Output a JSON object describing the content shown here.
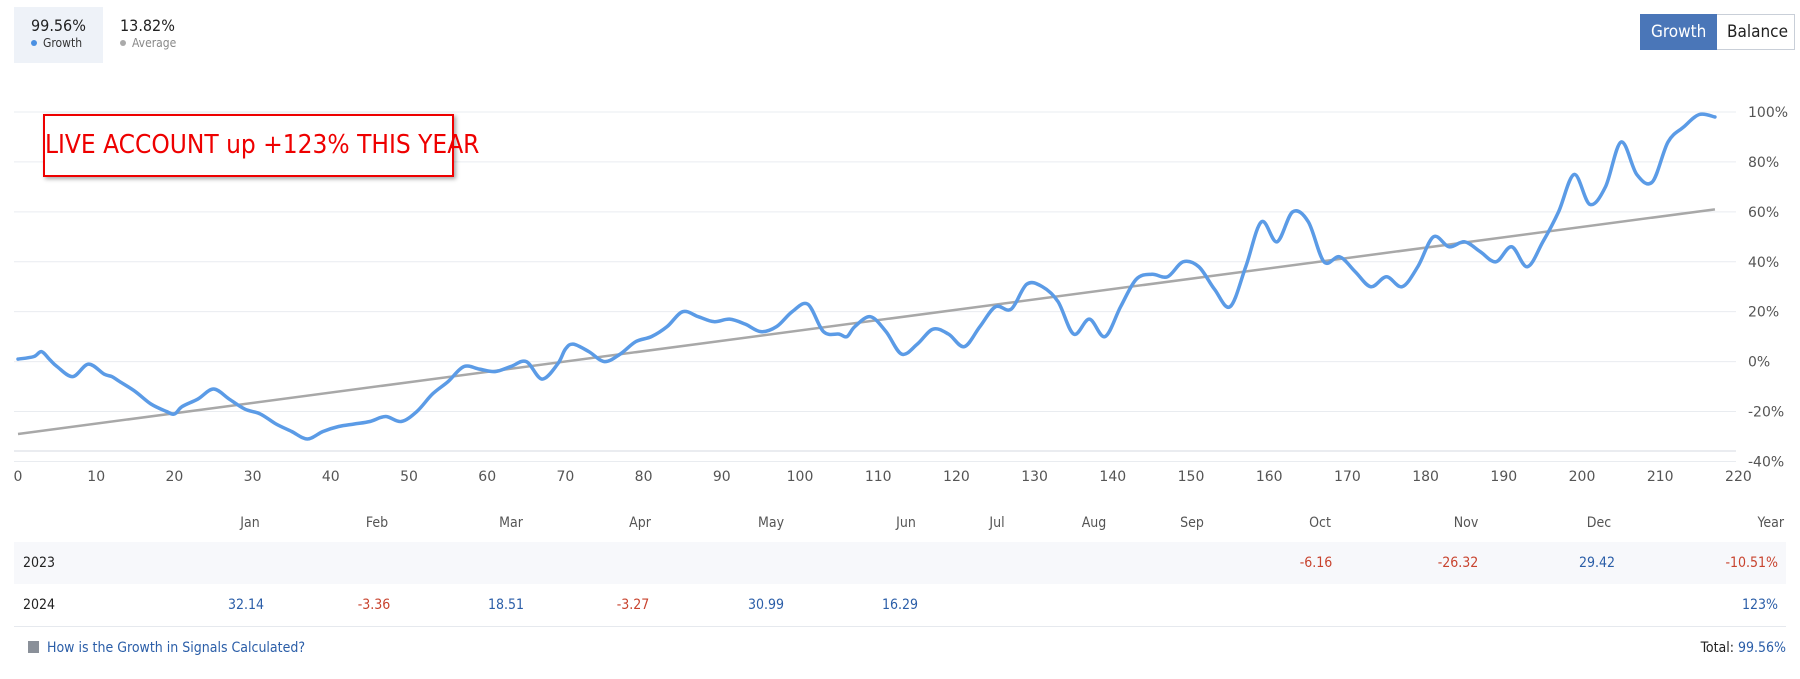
{
  "stats": [
    {
      "value": "99.56%",
      "label": "Growth",
      "color": "#4a90e2",
      "active": true
    },
    {
      "value": "13.82%",
      "label": "Average",
      "color": "#aaaaaa",
      "active": false
    }
  ],
  "toggle": {
    "growth": "Growth",
    "balance": "Balance"
  },
  "annotation": "LIVE ACCOUNT up +123% THIS YEAR",
  "chart_data": {
    "type": "line",
    "x_ticks": [
      "0",
      "10",
      "20",
      "30",
      "40",
      "50",
      "60",
      "70",
      "80",
      "90",
      "100",
      "110",
      "120",
      "130",
      "140",
      "150",
      "160",
      "170",
      "180",
      "190",
      "200",
      "210",
      "220"
    ],
    "y_ticks": [
      "100%",
      "80%",
      "60%",
      "40%",
      "20%",
      "0%",
      "-20%",
      "-40%"
    ],
    "xlim": [
      0,
      220
    ],
    "ylim": [
      -40,
      100
    ],
    "grid": true,
    "colors": {
      "growth": "#5b9be6",
      "average": "#a8a8a8"
    },
    "series": [
      {
        "name": "Growth",
        "x": [
          0,
          2,
          3,
          4,
          5,
          7,
          9,
          11,
          12,
          13,
          15,
          17,
          19,
          20,
          21,
          23,
          25,
          27,
          29,
          31,
          33,
          35,
          37,
          39,
          41,
          43,
          45,
          47,
          49,
          51,
          53,
          55,
          57,
          59,
          61,
          63,
          65,
          67,
          69,
          70,
          71,
          73,
          75,
          77,
          79,
          81,
          83,
          85,
          87,
          89,
          91,
          93,
          95,
          97,
          99,
          101,
          103,
          105,
          106,
          107,
          109,
          111,
          113,
          115,
          117,
          119,
          121,
          123,
          125,
          127,
          129,
          131,
          133,
          135,
          137,
          139,
          141,
          143,
          145,
          147,
          149,
          151,
          153,
          155,
          157,
          159,
          161,
          163,
          165,
          167,
          169,
          171,
          173,
          175,
          177,
          179,
          181,
          183,
          185,
          187,
          189,
          191,
          193,
          195,
          197,
          199,
          201,
          203,
          205,
          207,
          209,
          211,
          213,
          215,
          217
        ],
        "y": [
          1,
          2,
          4,
          1,
          -2,
          -6,
          -1,
          -5,
          -6,
          -8,
          -12,
          -17,
          -20,
          -21,
          -18,
          -15,
          -11,
          -15,
          -19,
          -21,
          -25,
          -28,
          -31,
          -28,
          -26,
          -25,
          -24,
          -22,
          -24,
          -20,
          -13,
          -8,
          -2,
          -3,
          -4,
          -2,
          0,
          -7,
          -1,
          5,
          7,
          4,
          0,
          3,
          8,
          10,
          14,
          20,
          18,
          16,
          17,
          15,
          12,
          14,
          20,
          23,
          12,
          11,
          10,
          14,
          18,
          12,
          3,
          7,
          13,
          11,
          6,
          14,
          22,
          21,
          31,
          30,
          24,
          11,
          17,
          10,
          22,
          33,
          35,
          34,
          40,
          38,
          29,
          22,
          38,
          56,
          48,
          60,
          56,
          40,
          42,
          36,
          30,
          34,
          30,
          38,
          50,
          46,
          48,
          44,
          40,
          46,
          38,
          48,
          60,
          75,
          63,
          70,
          88,
          75,
          72,
          88,
          94,
          99,
          98
        ]
      },
      {
        "name": "Average",
        "x": [
          0,
          217
        ],
        "y": [
          -29,
          61
        ]
      }
    ]
  },
  "months": [
    "Jan",
    "Feb",
    "Mar",
    "Apr",
    "May",
    "Jun",
    "Jul",
    "Aug",
    "Sep",
    "Oct",
    "Nov",
    "Dec"
  ],
  "year_header": "Year",
  "table": [
    {
      "year": "2023",
      "cells": [
        "",
        "",
        "",
        "",
        "",
        "",
        "",
        "",
        "",
        "-6.16",
        "-26.32",
        "29.42"
      ],
      "total": "-10.51%"
    },
    {
      "year": "2024",
      "cells": [
        "32.14",
        "-3.36",
        "18.51",
        "-3.27",
        "30.99",
        "16.29",
        "",
        "",
        "",
        "",
        "",
        ""
      ],
      "total": "123%"
    }
  ],
  "footer": {
    "link": "How is the Growth in Signals Calculated?",
    "total_label": "Total:",
    "total_value": "99.56%"
  }
}
